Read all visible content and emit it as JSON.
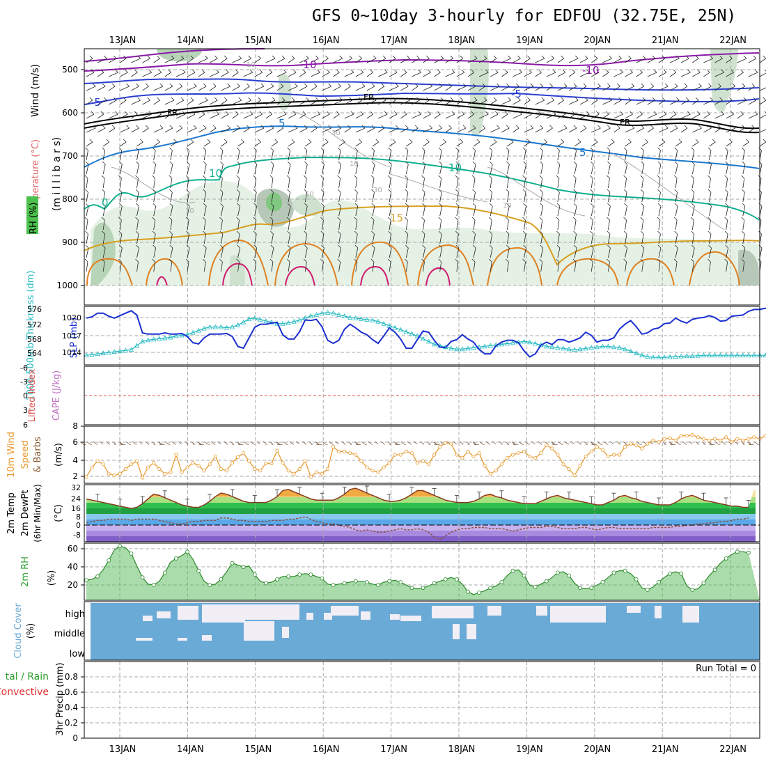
{
  "title": "GFS 0~10day 3-hourly for EDFOU (32.75E, 25N)",
  "colors": {
    "temp_minus10": "#8a1aa8",
    "temp_minus5": "#2a3fd0",
    "temp_5": "#1a78d0",
    "temp_10": "#10b090",
    "temp_15": "#d8a020",
    "temp_20": "#e08020",
    "temp_25": "#d01870",
    "freezing": "#000000",
    "slp": "#1a2fd0",
    "thickness": "#20b8c0",
    "wind10": "#e89a30",
    "cloud": "#6aaad6",
    "cloud_gap": "#f1eef6",
    "rh_fill": "#56b856"
  },
  "x_axis": {
    "day_labels": [
      "13JAN",
      "14JAN",
      "15JAN",
      "16JAN",
      "17JAN",
      "18JAN",
      "19JAN",
      "20JAN",
      "21JAN",
      "22JAN"
    ]
  },
  "panels": {
    "upper": {
      "ylabel_wind": "Wind (m/s)",
      "ylabel_temp": "Temperature (°C)",
      "ylabel_rh": "RH (%)",
      "ylabel_mb": "(m i l l i b a r s)",
      "levels": [
        "500",
        "600",
        "700",
        "800",
        "900",
        "1000"
      ],
      "contour_labels": [
        "-10",
        "-10",
        "-5",
        "-5",
        "FR",
        "FR",
        "FR",
        "-5",
        "-5",
        "5",
        "10",
        "10",
        "0",
        "15",
        "10",
        "30",
        "50",
        "10",
        "30",
        "10",
        "10"
      ]
    },
    "slp": {
      "ylabel_thick": "1000-500mb Thickness (dm)",
      "ylabel_slp": "SLP (mb)",
      "left_ticks": [
        "576",
        "572",
        "568",
        "564"
      ],
      "right_ticks": [
        "1020",
        "1017",
        "1014"
      ]
    },
    "cape": {
      "ylabel_li": "Lifted Index",
      "ylabel_cape": "CAPE (J/kg)",
      "ticks": [
        "-6",
        "-3",
        "0",
        "3",
        "6"
      ]
    },
    "wind10m": {
      "ylabel_a": "10m Wind",
      "ylabel_b": "Speed",
      "ylabel_c": "& Barbs",
      "ylabel_unit": "(m/s)",
      "ticks": [
        "8",
        "6",
        "4",
        "2"
      ]
    },
    "temp2m": {
      "ylabel_a": "2m Temp",
      "ylabel_b": "2m DewPt",
      "ylabel_c": "(6hr Min/Max)",
      "ylabel_unit": "(°C)",
      "ticks": [
        "32",
        "24",
        "16",
        "8",
        "0",
        "-8"
      ]
    },
    "rh2m": {
      "ylabel": "2m RH",
      "ylabel_unit": "(%)",
      "ticks": [
        "60",
        "40",
        "20"
      ]
    },
    "cloud": {
      "ylabel_a": "Cloud Cover",
      "ylabel_unit": "(%)",
      "levels": [
        "high",
        "middle",
        "low"
      ]
    },
    "precip": {
      "ylabel_a": "tal / Rain",
      "ylabel_b": "Convective",
      "ylabel_c": "3hr Precip (mm)",
      "run_total": "Run Total = 0",
      "ticks": [
        "0.8",
        "0.6",
        "0.4",
        "0.2",
        "0"
      ]
    }
  },
  "chart_data": [
    {
      "type": "line",
      "title": "SLP / 1000-500mb Thickness",
      "x_step_hours": 3,
      "series": [
        {
          "name": "SLP (mb)",
          "values": [
            1019.6,
            1019.8,
            1020.4,
            1020.4,
            1019.9,
            1019.6,
            1020.0,
            1020.4,
            1020.8,
            1020.1,
            1017.2,
            1017.0,
            1017.0,
            1017.0,
            1017.2,
            1017.0,
            1017.0,
            1017.1,
            1016.6,
            1015.6,
            1015.4,
            1016.4,
            1017.0,
            1017.0,
            1017.0,
            1017.1,
            1016.6,
            1015.0,
            1014.7,
            1016.4,
            1018.1,
            1018.6,
            1018.6,
            1018.8,
            1018.9,
            1016.9,
            1016.2,
            1016.2,
            1017.4,
            1019.3,
            1019.2,
            1019.4,
            1018.2,
            1016.0,
            1015.5,
            1016.0,
            1017.8,
            1018.6,
            1018.0,
            1017.3,
            1016.9,
            1016.1,
            1015.5,
            1016.7,
            1018.0,
            1017.3,
            1016.2,
            1014.7,
            1014.7,
            1016.1,
            1017.5,
            1017.3,
            1016.0,
            1014.9,
            1014.8,
            1015.8,
            1016.1,
            1016.9,
            1016.2,
            1015.7,
            1014.5,
            1013.8,
            1013.8,
            1015.1,
            1015.7,
            1016.0,
            1016.0,
            1015.6,
            1014.3,
            1013.3,
            1013.8,
            1015.2,
            1015.7,
            1015.3,
            1016.1,
            1016.1,
            1015.7,
            1016.0,
            1016.4,
            1017.3,
            1016.8,
            1015.7,
            1016.0,
            1016.0,
            1016.4,
            1017.8,
            1018.6,
            1019.2,
            1018.2,
            1017.0,
            1017.2,
            1017.8,
            1018.0,
            1018.7,
            1018.8,
            1019.6,
            1019.1,
            1018.8,
            1019.4,
            1019.6,
            1019.7,
            1020.0,
            1019.7,
            1019.1,
            1019.2,
            1019.9,
            1020.0,
            1020.1,
            1020.7,
            1021.0,
            1021.0,
            1021.2,
            1021.0
          ],
          "plot": "slp"
        },
        {
          "name": "1000-500mb Thickness (dm)",
          "values": [
            562.8,
            563.0,
            563.2,
            563.4,
            563.6,
            563.8,
            564.0,
            564.2,
            564.4,
            565.6,
            566.8,
            567.2,
            567.4,
            567.6,
            567.8,
            568.0,
            568.4,
            568.6,
            568.8,
            569.4,
            570.0,
            570.6,
            571.0,
            571.0,
            571.0,
            570.8,
            571.0,
            571.6,
            572.4,
            573.4,
            573.6,
            573.2,
            572.8,
            572.4,
            572.0,
            572.0,
            572.2,
            572.6,
            573.0,
            573.6,
            574.2,
            574.6,
            575.0,
            575.2,
            575.0,
            574.6,
            574.2,
            573.8,
            573.6,
            573.4,
            573.2,
            573.0,
            572.6,
            572.0,
            571.4,
            570.8,
            570.2,
            569.6,
            569.0,
            568.4,
            567.6,
            566.8,
            566.0,
            565.6,
            565.2,
            564.8,
            564.6,
            564.6,
            564.8,
            565.0,
            565.2,
            565.4,
            565.6,
            565.8,
            566.0,
            566.2,
            566.4,
            566.6,
            566.8,
            566.6,
            566.2,
            565.8,
            565.4,
            565.2,
            565.0,
            564.8,
            564.6,
            564.4,
            564.6,
            564.8,
            565.0,
            565.2,
            565.4,
            565.4,
            565.2,
            565.0,
            564.6,
            564.0,
            563.4,
            562.8,
            562.4,
            562.2,
            562.2,
            562.2,
            562.3,
            562.4,
            562.5,
            562.6,
            562.6,
            562.7,
            562.8,
            562.8,
            562.8,
            562.8,
            562.8,
            562.8,
            562.8,
            562.8,
            562.8,
            562.8,
            562.8,
            562.8,
            562.8
          ],
          "plot": "thickness"
        }
      ],
      "ylim_slp": [
        1012,
        1021.5
      ],
      "ylim_thickness": [
        560,
        577
      ]
    },
    {
      "type": "line",
      "title": "10m Wind Speed",
      "x_step_hours": 3,
      "series": [
        {
          "name": "10m Wind Speed (m/s)",
          "values": [
            1.6,
            2.8,
            3.6,
            3.2,
            2.0,
            1.8,
            2.0,
            2.6,
            3.2,
            3.6,
            1.5,
            2.8,
            3.4,
            2.6,
            2.0,
            2.2,
            4.4,
            2.2,
            2.8,
            3.4,
            3.0,
            2.4,
            3.2,
            4.2,
            2.6,
            2.4,
            3.4,
            4.1,
            4.6,
            3.6,
            2.6,
            2.4,
            3.3,
            3.3,
            4.9,
            3.4,
            2.4,
            2.0,
            2.6,
            3.6,
            1.6,
            2.2,
            2.0,
            2.6,
            5.4,
            4.8,
            4.8,
            4.6,
            4.4,
            3.6,
            2.8,
            2.4,
            2.2,
            2.8,
            3.4,
            4.4,
            4.4,
            4.8,
            4.6,
            3.4,
            3.6,
            3.2,
            4.4,
            5.4,
            5.9,
            5.8,
            4.4,
            4.0,
            4.8,
            4.2,
            4.6,
            3.0,
            2.0,
            2.4,
            3.2,
            4.0,
            4.4,
            4.6,
            4.8,
            4.2,
            4.0,
            4.6,
            5.6,
            5.2,
            4.4,
            3.2,
            2.6,
            1.8,
            3.0,
            4.2,
            4.8,
            5.4,
            5.0,
            4.2,
            4.4,
            4.4,
            5.4,
            5.8,
            5.6,
            5.2,
            5.8,
            6.2,
            6.0,
            6.4,
            6.5,
            6.2,
            6.8,
            6.8,
            6.9,
            6.6,
            6.4,
            6.2,
            6.4,
            6.2,
            6.6,
            6.0,
            6.4,
            6.2,
            6.4,
            6.6,
            6.4,
            6.8,
            7.0
          ],
          "plot": "wind10"
        }
      ],
      "ylim": [
        0.8,
        8
      ]
    },
    {
      "type": "area",
      "title": "2m Temp / DewPt",
      "x_step_hours": 3,
      "series": [
        {
          "name": "2m Temp (°C)",
          "values": [
            22,
            21,
            20,
            19,
            18,
            17,
            16,
            15,
            14,
            15,
            18,
            22,
            26,
            25,
            23,
            21,
            19,
            17,
            16,
            15,
            15,
            17,
            20,
            24,
            27,
            26,
            24,
            22,
            20,
            19,
            19,
            19,
            19,
            21,
            24,
            29,
            30,
            28,
            26,
            24,
            22,
            21,
            21,
            21,
            21,
            23,
            26,
            30,
            31,
            29,
            27,
            25,
            23,
            21,
            20,
            20,
            21,
            23,
            26,
            29,
            29,
            27,
            25,
            23,
            21,
            20,
            19,
            19,
            19,
            20,
            22,
            25,
            26,
            24,
            23,
            21,
            20,
            19,
            18,
            18,
            18,
            20,
            22,
            24,
            25,
            23,
            22,
            21,
            20,
            19,
            18,
            17,
            17,
            19,
            21,
            24,
            25,
            23,
            22,
            20,
            19,
            18,
            17,
            17,
            17,
            19,
            22,
            24,
            25,
            23,
            21,
            20,
            19,
            18,
            17,
            16,
            16,
            15,
            15
          ],
          "plot": "t2m"
        },
        {
          "name": "2m DewPt (°C)",
          "values": [
            2,
            3,
            4,
            4,
            5,
            5,
            5,
            5,
            4,
            5,
            5,
            5,
            5,
            4,
            3,
            2,
            1,
            1,
            2,
            3,
            3,
            4,
            4,
            4,
            6,
            6,
            5,
            4,
            4,
            3,
            3,
            3,
            3,
            4,
            4,
            4,
            5,
            5,
            6,
            7,
            5,
            3,
            2,
            1,
            1,
            0,
            -1,
            -2,
            -4,
            -5,
            -4,
            -5,
            -6,
            -6,
            -5,
            -4,
            -3,
            -4,
            -4,
            -3,
            -4,
            -6,
            -10,
            -12,
            -9,
            -6,
            -4,
            -3,
            -3,
            -2,
            -2,
            -2,
            -3,
            -3,
            -3,
            -4,
            -5,
            -4,
            -3,
            -2,
            -2,
            -2,
            -1,
            -1,
            -2,
            -3,
            -3,
            -3,
            -2,
            -2,
            -3,
            -4,
            -3,
            -2,
            -2,
            -3,
            -3,
            -3,
            -3,
            -3,
            -3,
            -2,
            -2,
            -2,
            -2,
            -1,
            -1,
            0,
            0,
            1,
            1,
            2,
            2,
            3,
            3,
            4,
            5,
            5,
            6
          ],
          "plot": "td2m"
        }
      ],
      "ylim": [
        -14,
        34
      ]
    },
    {
      "type": "area",
      "title": "2m RH",
      "x_step_hours": 3,
      "series": [
        {
          "name": "2m RH (%)",
          "values": [
            26,
            27,
            30,
            37,
            47,
            58,
            62,
            60,
            54,
            41,
            29,
            22,
            21,
            25,
            34,
            45,
            49,
            52,
            56,
            48,
            36,
            25,
            21,
            22,
            27,
            35,
            44,
            42,
            40,
            41,
            32,
            25,
            23,
            24,
            27,
            30,
            30,
            30,
            32,
            33,
            32,
            30,
            28,
            22,
            21,
            22,
            23,
            24,
            25,
            25,
            24,
            22,
            21,
            24,
            25,
            26,
            24,
            21,
            18,
            17,
            18,
            20,
            23,
            25,
            27,
            29,
            27,
            22,
            14,
            11,
            13,
            15,
            18,
            20,
            24,
            31,
            36,
            37,
            31,
            21,
            19,
            22,
            25,
            29,
            34,
            35,
            31,
            23,
            18,
            17,
            18,
            21,
            24,
            29,
            34,
            36,
            36,
            33,
            27,
            18,
            16,
            19,
            24,
            29,
            33,
            35,
            33,
            20,
            16,
            17,
            23,
            31,
            37,
            44,
            49,
            53,
            56,
            56,
            55
          ],
          "plot": "rh2m"
        }
      ],
      "ylim": [
        5,
        65
      ]
    },
    {
      "type": "table",
      "title": "Cloud Cover",
      "rows": [
        "high",
        "middle",
        "low"
      ]
    },
    {
      "type": "bar",
      "title": "3hr Precip (mm)",
      "values": [],
      "ylim": [
        0,
        1
      ]
    }
  ]
}
